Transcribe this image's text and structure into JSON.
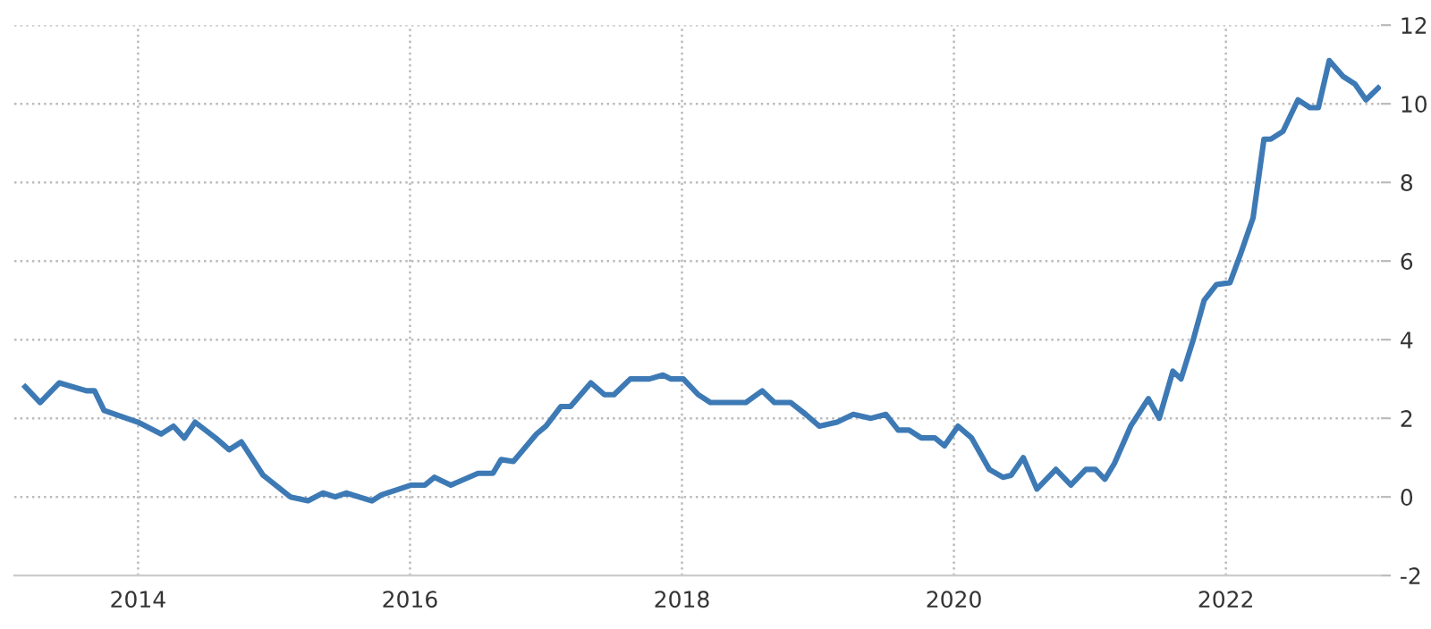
{
  "chart_data": {
    "type": "line",
    "x": [
      2013.17,
      2013.28,
      2013.42,
      2013.62,
      2013.68,
      2013.75,
      2014.0,
      2014.17,
      2014.26,
      2014.34,
      2014.42,
      2014.57,
      2014.67,
      2014.76,
      2014.92,
      2015.12,
      2015.25,
      2015.36,
      2015.45,
      2015.53,
      2015.72,
      2015.79,
      2016.01,
      2016.11,
      2016.18,
      2016.3,
      2016.5,
      2016.61,
      2016.67,
      2016.76,
      2016.93,
      2017.0,
      2017.11,
      2017.18,
      2017.33,
      2017.43,
      2017.5,
      2017.62,
      2017.76,
      2017.86,
      2017.92,
      2018.01,
      2018.12,
      2018.21,
      2018.47,
      2018.59,
      2018.68,
      2018.8,
      2018.91,
      2019.01,
      2019.14,
      2019.26,
      2019.39,
      2019.5,
      2019.59,
      2019.67,
      2019.76,
      2019.86,
      2019.93,
      2020.03,
      2020.13,
      2020.26,
      2020.36,
      2020.42,
      2020.51,
      2020.61,
      2020.75,
      2020.86,
      2020.97,
      2021.04,
      2021.11,
      2021.18,
      2021.3,
      2021.43,
      2021.51,
      2021.61,
      2021.67,
      2021.76,
      2021.84,
      2021.93,
      2022.03,
      2022.11,
      2022.2,
      2022.28,
      2022.33,
      2022.42,
      2022.53,
      2022.62,
      2022.68,
      2022.76,
      2022.86,
      2022.95,
      2023.03,
      2023.12
    ],
    "series": [
      {
        "color": "#3d7ab5",
        "values": [
          2.8,
          2.4,
          2.9,
          2.7,
          2.7,
          2.2,
          1.9,
          1.6,
          1.8,
          1.5,
          1.9,
          1.5,
          1.2,
          1.4,
          0.55,
          0,
          -0.1,
          0.1,
          0,
          0.1,
          -0.1,
          0.05,
          0.3,
          0.3,
          0.5,
          0.3,
          0.6,
          0.6,
          0.95,
          0.9,
          1.6,
          1.8,
          2.3,
          2.3,
          2.9,
          2.6,
          2.6,
          3.0,
          3.0,
          3.1,
          3.0,
          3.0,
          2.6,
          2.4,
          2.4,
          2.7,
          2.4,
          2.4,
          2.1,
          1.8,
          1.9,
          2.1,
          2.0,
          2.1,
          1.7,
          1.7,
          1.5,
          1.5,
          1.3,
          1.8,
          1.5,
          0.7,
          0.5,
          0.55,
          1.0,
          0.2,
          0.7,
          0.3,
          0.7,
          0.7,
          0.45,
          0.85,
          1.8,
          2.5,
          2.0,
          3.2,
          3.0,
          4.0,
          5.0,
          5.4,
          5.45,
          6.2,
          7.1,
          9.1,
          9.1,
          9.3,
          10.1,
          9.9,
          9.9,
          11.1,
          10.7,
          10.5,
          10.1,
          10.4
        ]
      }
    ],
    "xlim": [
      2013.09,
      2023.14
    ],
    "xticks": [
      2014,
      2016,
      2018,
      2020,
      2022
    ],
    "ylim": [
      -2,
      12
    ],
    "yticks": [
      -2,
      0,
      2,
      4,
      6,
      8,
      10,
      12
    ],
    "grid": true,
    "line_style": "solid",
    "marker": "none"
  }
}
